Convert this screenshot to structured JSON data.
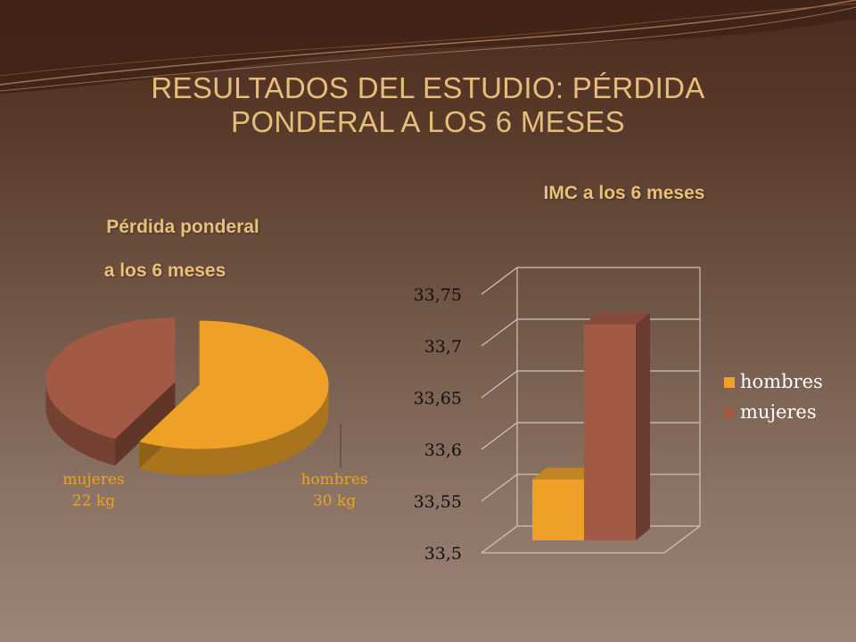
{
  "slide": {
    "title_line1": "RESULTADOS DEL ESTUDIO: PÉRDIDA",
    "title_line2": "PONDERAL A LOS 6 MESES"
  },
  "colors": {
    "hombres": "#eea027",
    "mujeres": "#a25a45",
    "title": "#e7be79"
  },
  "chart_data": [
    {
      "type": "pie",
      "title_line1": "Pérdida  ponderal",
      "title_line2": "a los 6 meses",
      "categories": [
        "mujeres",
        "hombres"
      ],
      "values": [
        22,
        30
      ],
      "unit": "kg",
      "value_labels": [
        "22 kg",
        "30 kg"
      ]
    },
    {
      "type": "bar",
      "title": "IMC a los 6 meses",
      "series": [
        {
          "name": "hombres",
          "values": [
            33.59
          ]
        },
        {
          "name": "mujeres",
          "values": [
            33.74
          ]
        }
      ],
      "ylim": [
        33.5,
        33.75
      ],
      "yticks": [
        "33,5",
        "33,55",
        "33,6",
        "33,65",
        "33,7",
        "33,75"
      ],
      "grid": true,
      "legend": "right"
    }
  ]
}
